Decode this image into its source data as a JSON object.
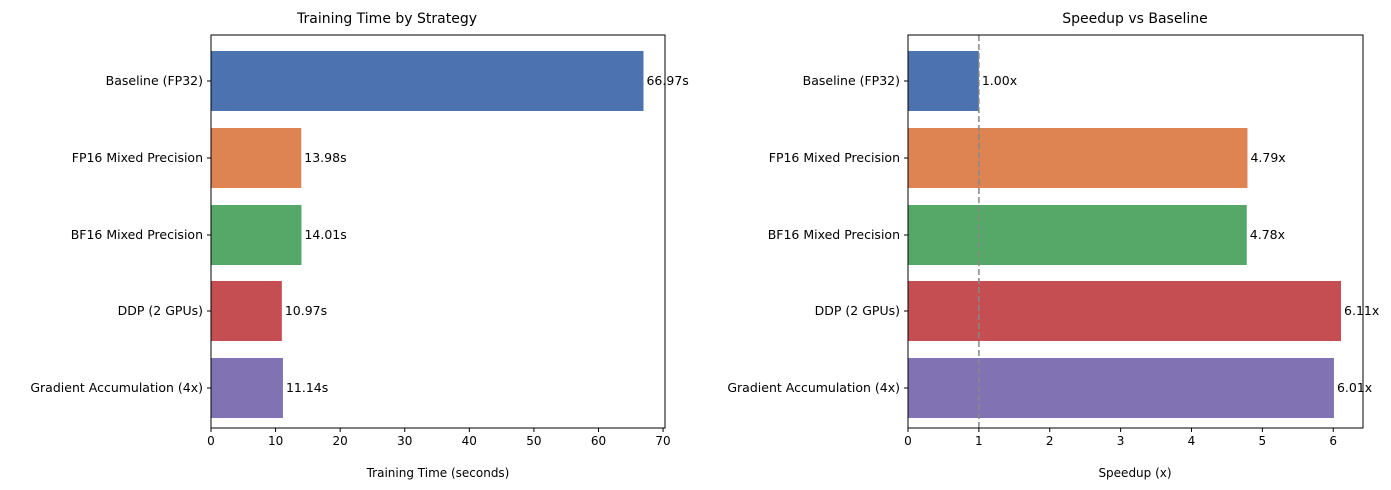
{
  "chart_data": [
    {
      "type": "bar",
      "orientation": "horizontal",
      "title": "Training Time by Strategy",
      "xlabel": "Training Time (seconds)",
      "ylabel": "",
      "xlim": [
        0,
        70.3
      ],
      "xticks": [
        0,
        10,
        20,
        30,
        40,
        50,
        60,
        70
      ],
      "grid": false,
      "categories": [
        "Baseline (FP32)",
        "FP16 Mixed Precision",
        "BF16 Mixed Precision",
        "DDP (2 GPUs)",
        "Gradient Accumulation (4x)"
      ],
      "values": [
        66.97,
        13.98,
        14.01,
        10.97,
        11.14
      ],
      "value_labels": [
        "66.97s",
        "13.98s",
        "14.01s",
        "10.97s",
        "11.14s"
      ],
      "colors": [
        "#4c72b0",
        "#dd8452",
        "#55a868",
        "#c44e52",
        "#8172b3"
      ]
    },
    {
      "type": "bar",
      "orientation": "horizontal",
      "title": "Speedup vs Baseline",
      "xlabel": "Speedup (x)",
      "ylabel": "",
      "xlim": [
        0,
        6.42
      ],
      "xticks": [
        0,
        1,
        2,
        3,
        4,
        5,
        6
      ],
      "grid": false,
      "reference_line": 1,
      "categories": [
        "Baseline (FP32)",
        "FP16 Mixed Precision",
        "BF16 Mixed Precision",
        "DDP (2 GPUs)",
        "Gradient Accumulation (4x)"
      ],
      "values": [
        1.0,
        4.79,
        4.78,
        6.11,
        6.01
      ],
      "value_labels": [
        "1.00x",
        "4.79x",
        "4.78x",
        "6.11x",
        "6.01x"
      ],
      "colors": [
        "#4c72b0",
        "#dd8452",
        "#55a868",
        "#c44e52",
        "#8172b3"
      ]
    }
  ]
}
